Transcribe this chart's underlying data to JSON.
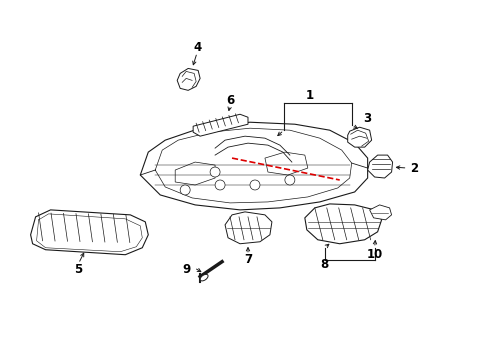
{
  "background_color": "#ffffff",
  "line_color": "#1a1a1a",
  "red_line_color": "#dd0000",
  "figsize": [
    4.89,
    3.6
  ],
  "dpi": 100
}
